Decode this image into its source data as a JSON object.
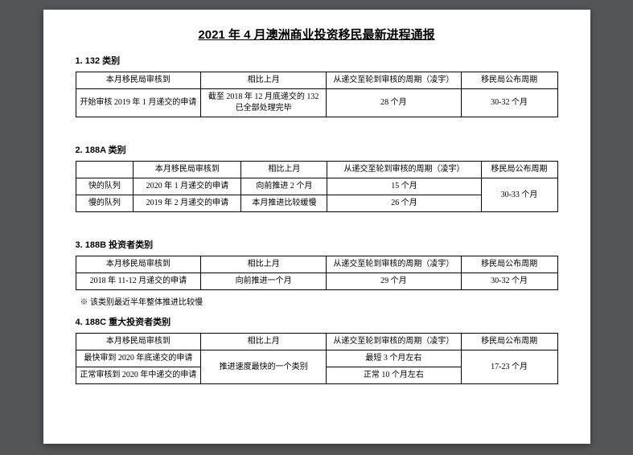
{
  "title": "2021 年 4 月澳洲商业投资移民最新进程通报",
  "headers": {
    "col1": "本月移民局审核到",
    "col2": "相比上月",
    "col3": "从递交至轮到审核的周期（凌宇）",
    "col4": "移民局公布周期"
  },
  "s1": {
    "label": "1.  132 类别",
    "r1c1": "开始审核 2019 年 1 月递交的申请",
    "r1c2": "截至 2018 年 12 月底递交的 132 已全部处理完毕",
    "r1c3": "28 个月",
    "r1c4": "30-32 个月"
  },
  "s2": {
    "label": "2.  188A 类别",
    "row1label": "快的队列",
    "row2label": "慢的队列",
    "r1c1": "2020 年 1 月递交的申请",
    "r1c2": "向前推进 2 个月",
    "r1c3": "15 个月",
    "r2c1": "2019 年 2 月递交的申请",
    "r2c2": "本月推进比较缓慢",
    "r2c3": "26 个月",
    "c4": "30-33 个月"
  },
  "s3": {
    "label": "3.  188B 投资者类别",
    "r1c1": "2018 年 11-12 月递交的申请",
    "r1c2": "向前推进一个月",
    "r1c3": "29 个月",
    "r1c4": "30-32 个月",
    "note": "※ 该类别最近半年整体推进比较慢"
  },
  "s4": {
    "label": "4.  188C 重大投资者类别",
    "r1c1": "最快审到 2020 年底递交的申请",
    "r1c2": "推进速度最快的一个类别",
    "r1c3": "最短 3 个月左右",
    "r2c1": "正常审核到 2020 年中递交的申请",
    "r2c3": "正常 10 个月左右",
    "c4": "17-23 个月"
  }
}
